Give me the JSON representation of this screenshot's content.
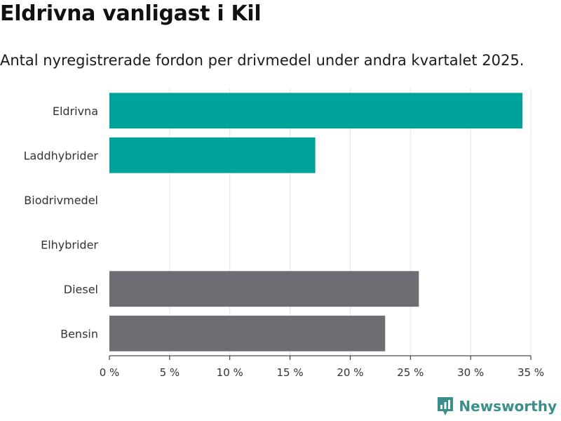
{
  "header": {
    "title": "Eldrivna vanligast i Kil",
    "subtitle": "Antal nyregistrerade fordon per drivmedel under andra kvartalet 2025."
  },
  "chart_data": {
    "type": "bar",
    "orientation": "horizontal",
    "categories": [
      "Eldrivna",
      "Laddhybrider",
      "Biodrivmedel",
      "Elhybrider",
      "Diesel",
      "Bensin"
    ],
    "values": [
      34.3,
      17.1,
      0,
      0,
      25.7,
      22.9
    ],
    "bar_colors": [
      "#00a39a",
      "#00a39a",
      "#00a39a",
      "#00a39a",
      "#6e6d74",
      "#6e6d74"
    ],
    "xlim": [
      0,
      35
    ],
    "xticks": [
      0,
      5,
      10,
      15,
      20,
      25,
      30,
      35
    ],
    "tick_labels": [
      "0 %",
      "5 %",
      "10 %",
      "15 %",
      "20 %",
      "25 %",
      "30 %",
      "35 %"
    ],
    "grid": true
  },
  "brand": {
    "name": "Newsworthy",
    "icon": "newsworthy-logo-icon",
    "color": "#3b8f8a"
  }
}
